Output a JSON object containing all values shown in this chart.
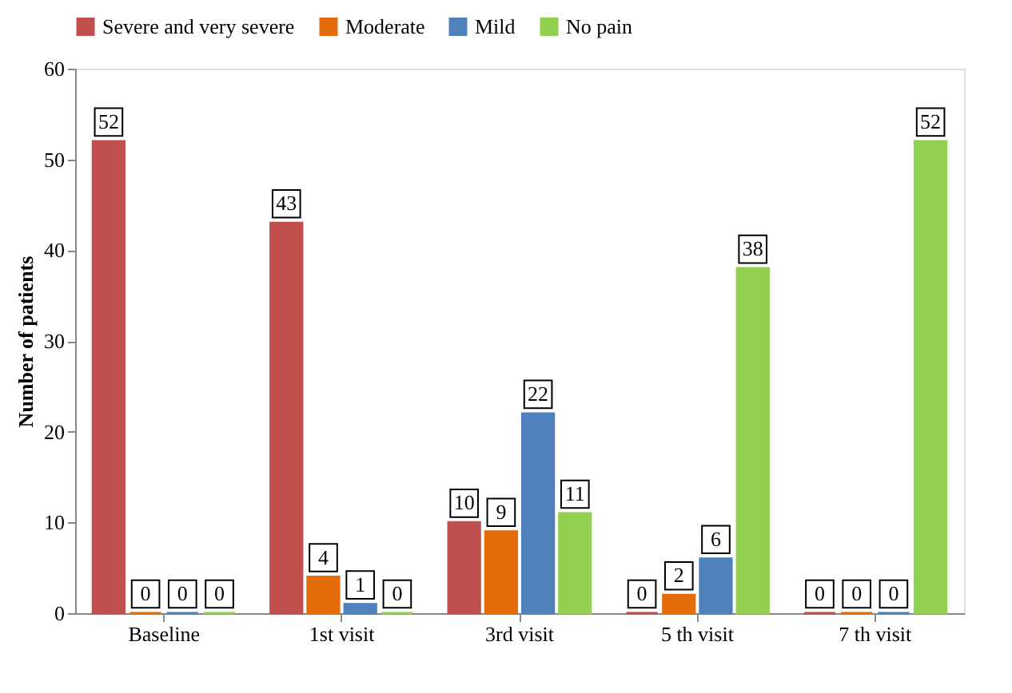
{
  "chart_data": {
    "type": "bar",
    "categories": [
      "Baseline",
      "1st visit",
      "3rd visit",
      "5 th  visit",
      "7 th visit"
    ],
    "series": [
      {
        "name": "Severe and very severe",
        "color": "#c0504d",
        "values": [
          52,
          43,
          10,
          0,
          0
        ]
      },
      {
        "name": "Moderate",
        "color": "#e46c0a",
        "values": [
          0,
          4,
          9,
          2,
          0
        ]
      },
      {
        "name": "Mild",
        "color": "#4f81bd",
        "values": [
          0,
          1,
          22,
          6,
          0
        ]
      },
      {
        "name": "No pain",
        "color": "#92d050",
        "values": [
          0,
          0,
          11,
          38,
          52
        ]
      }
    ],
    "ylabel": "Number of patients",
    "ylim": [
      0,
      60
    ],
    "yticks": [
      0,
      10,
      20,
      30,
      40,
      50,
      60
    ],
    "grid": false,
    "legend": "top",
    "data_labels": true
  }
}
